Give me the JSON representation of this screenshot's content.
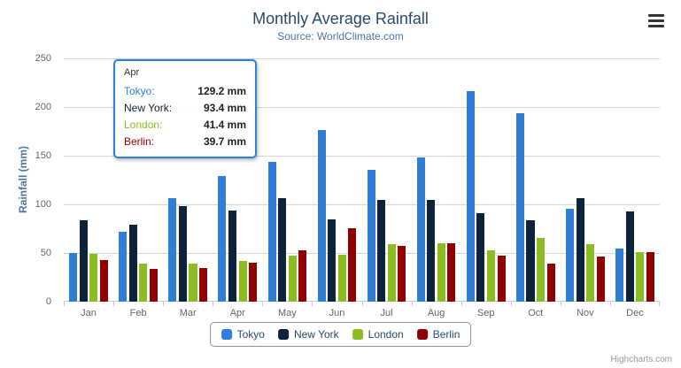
{
  "chart_data": {
    "type": "bar",
    "title": "Monthly Average Rainfall",
    "subtitle": "Source: WorldClimate.com",
    "xlabel": "",
    "ylabel": "Rainfall (mm)",
    "ylim": [
      0,
      250
    ],
    "ytick_interval": 50,
    "grid": true,
    "legend_position": "bottom",
    "categories": [
      "Jan",
      "Feb",
      "Mar",
      "Apr",
      "May",
      "Jun",
      "Jul",
      "Aug",
      "Sep",
      "Oct",
      "Nov",
      "Dec"
    ],
    "series": [
      {
        "name": "Tokyo",
        "color": "#2f7ed8",
        "values": [
          49.9,
          71.5,
          106.4,
          129.2,
          144.0,
          176.0,
          135.6,
          148.5,
          216.4,
          194.1,
          95.6,
          54.4
        ]
      },
      {
        "name": "New York",
        "color": "#0d233a",
        "values": [
          83.6,
          78.8,
          98.5,
          93.4,
          106.0,
          84.5,
          105.0,
          104.3,
          91.2,
          83.5,
          106.6,
          92.3
        ]
      },
      {
        "name": "London",
        "color": "#8bbc21",
        "values": [
          48.9,
          38.8,
          39.3,
          41.4,
          47.0,
          48.3,
          59.0,
          59.6,
          52.4,
          65.2,
          59.3,
          51.2
        ]
      },
      {
        "name": "Berlin",
        "color": "#910000",
        "values": [
          42.4,
          33.2,
          34.5,
          39.7,
          52.6,
          75.5,
          57.4,
          60.4,
          47.6,
          39.1,
          46.8,
          51.1
        ]
      }
    ]
  },
  "tooltip": {
    "category": "Apr",
    "border_color": "#2f7ed8",
    "rows": [
      {
        "name": "Tokyo",
        "value": "129.2 mm",
        "color": "#2f7ed8"
      },
      {
        "name": "New York",
        "value": "93.4 mm",
        "color": "#0d233a"
      },
      {
        "name": "London",
        "value": "41.4 mm",
        "color": "#8bbc21"
      },
      {
        "name": "Berlin",
        "value": "39.7 mm",
        "color": "#910000"
      }
    ]
  },
  "legend": {
    "items": [
      "Tokyo",
      "New York",
      "London",
      "Berlin"
    ]
  },
  "credits": {
    "label": "Highcharts.com"
  }
}
